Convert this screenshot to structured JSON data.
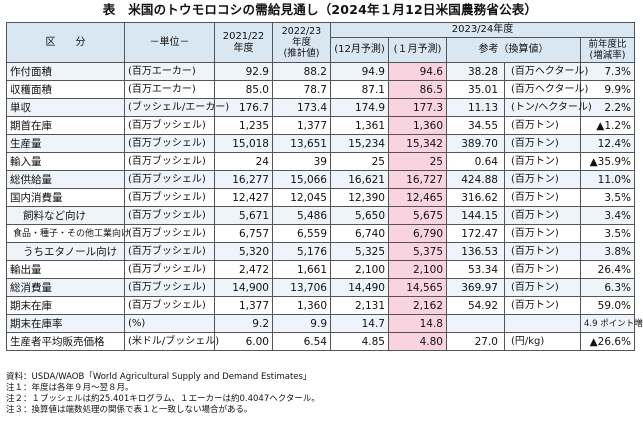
{
  "title": "表　米国のトウモロコシの需給見通し（2024年１月12日米国農務省公表）",
  "headers": {
    "kubun": "区　　分",
    "unit": "－単位－",
    "y2122": "2021/22\n年度",
    "y2223": "2022/23\n年度\n(推計値)",
    "y2324": "2023/24年度",
    "dec": "(12月予測)",
    "jan": "(１月予測)",
    "ref": "参考（換算値）",
    "change": "前年度比\n(増減率)"
  },
  "rows": [
    {
      "item": "作付面積",
      "indent": 0,
      "unit": "(百万エーカー)",
      "v1": "92.9",
      "v2": "88.2",
      "dec": "94.9",
      "jan": "94.6",
      "ref_val": "38.28",
      "ref_unit": "(百万ヘクタール)",
      "change": "7.3%"
    },
    {
      "item": "収穫面積",
      "indent": 0,
      "unit": "(百万エーカー)",
      "v1": "85.0",
      "v2": "78.7",
      "dec": "87.1",
      "jan": "86.5",
      "ref_val": "35.01",
      "ref_unit": "(百万ヘクタール)",
      "change": "9.9%"
    },
    {
      "item": "単収",
      "indent": 0,
      "unit": "(ブッシェル/エーカー)",
      "v1": "176.7",
      "v2": "173.4",
      "dec": "174.9",
      "jan": "177.3",
      "ref_val": "11.13",
      "ref_unit": "(トン/ヘクタール)",
      "change": "2.2%"
    },
    {
      "item": "期首在庫",
      "indent": 0,
      "unit": "(百万ブッシェル)",
      "v1": "1,235",
      "v2": "1,377",
      "dec": "1,361",
      "jan": "1,360",
      "ref_val": "34.55",
      "ref_unit": "(百万トン)",
      "change": "▲1.2%"
    },
    {
      "item": "生産量",
      "indent": 0,
      "unit": "(百万ブッシェル)",
      "v1": "15,018",
      "v2": "13,651",
      "dec": "15,234",
      "jan": "15,342",
      "ref_val": "389.70",
      "ref_unit": "(百万トン)",
      "change": "12.4%"
    },
    {
      "item": "輸入量",
      "indent": 0,
      "unit": "(百万ブッシェル)",
      "v1": "24",
      "v2": "39",
      "dec": "25",
      "jan": "25",
      "ref_val": "0.64",
      "ref_unit": "(百万トン)",
      "change": "▲35.9%"
    },
    {
      "item": "総供給量",
      "indent": 0,
      "unit": "(百万ブッシェル)",
      "v1": "16,277",
      "v2": "15,066",
      "dec": "16,621",
      "jan": "16,727",
      "ref_val": "424.88",
      "ref_unit": "(百万トン)",
      "change": "11.0%"
    },
    {
      "item": "国内消費量",
      "indent": 0,
      "unit": "(百万ブッシェル)",
      "v1": "12,427",
      "v2": "12,045",
      "dec": "12,390",
      "jan": "12,465",
      "ref_val": "316.62",
      "ref_unit": "(百万トン)",
      "change": "3.5%"
    },
    {
      "item": "飼料など向け",
      "indent": 1,
      "unit": "(百万ブッシェル)",
      "v1": "5,671",
      "v2": "5,486",
      "dec": "5,650",
      "jan": "5,675",
      "ref_val": "144.15",
      "ref_unit": "(百万トン)",
      "change": "3.4%"
    },
    {
      "item": "食品・種子・その他工業向け",
      "indent": 2,
      "unit": "(百万ブッシェル)",
      "v1": "6,757",
      "v2": "6,559",
      "dec": "6,740",
      "jan": "6,790",
      "ref_val": "172.47",
      "ref_unit": "(百万トン)",
      "change": "3.5%"
    },
    {
      "item": "うちエタノール向け",
      "indent": 1,
      "unit": "(百万ブッシェル)",
      "v1": "5,320",
      "v2": "5,176",
      "dec": "5,325",
      "jan": "5,375",
      "ref_val": "136.53",
      "ref_unit": "(百万トン)",
      "change": "3.8%"
    },
    {
      "item": "輸出量",
      "indent": 0,
      "unit": "(百万ブッシェル)",
      "v1": "2,472",
      "v2": "1,661",
      "dec": "2,100",
      "jan": "2,100",
      "ref_val": "53.34",
      "ref_unit": "(百万トン)",
      "change": "26.4%"
    },
    {
      "item": "総消費量",
      "indent": 0,
      "unit": "(百万ブッシェル)",
      "v1": "14,900",
      "v2": "13,706",
      "dec": "14,490",
      "jan": "14,565",
      "ref_val": "369.97",
      "ref_unit": "(百万トン)",
      "change": "6.3%"
    },
    {
      "item": "期末在庫",
      "indent": 0,
      "unit": "(百万ブッシェル)",
      "v1": "1,377",
      "v2": "1,360",
      "dec": "2,131",
      "jan": "2,162",
      "ref_val": "54.92",
      "ref_unit": "(百万トン)",
      "change": "59.0%"
    },
    {
      "item": "期末在庫率",
      "indent": 0,
      "unit": "(%)",
      "v1": "9.2",
      "v2": "9.9",
      "dec": "14.7",
      "jan": "14.8",
      "ref_val": "",
      "ref_unit": "",
      "change": "4.9 ポイント増"
    },
    {
      "item": "生産者平均販売価格",
      "indent": 0,
      "unit": "(米ドル/ブッシェル)",
      "v1": "6.00",
      "v2": "6.54",
      "dec": "4.85",
      "jan": "4.80",
      "ref_val": "27.0",
      "ref_unit": "(円/kg)",
      "change": "▲26.6%"
    }
  ],
  "notes": [
    "資料：USDA/WAOB「World Agricultural Supply and Demand Estimates」",
    "注１：年度は各年９月～翌８月。",
    "注２：１ブッシェルは約25.401キログラム、１エーカーは約0.4047ヘクタール。",
    "注３：換算値は端数処理の関係で表１と一致しない場合がある。"
  ]
}
